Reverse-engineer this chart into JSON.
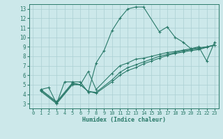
{
  "xlabel": "Humidex (Indice chaleur)",
  "ylabel": "",
  "bg_color": "#cce8ea",
  "grid_color": "#aacfd2",
  "line_color": "#2a7a6a",
  "xlim": [
    -0.5,
    23.5
  ],
  "ylim": [
    2.5,
    13.5
  ],
  "xticks": [
    0,
    1,
    2,
    3,
    4,
    5,
    6,
    7,
    8,
    9,
    10,
    11,
    12,
    13,
    14,
    15,
    16,
    17,
    18,
    19,
    20,
    21,
    22,
    23
  ],
  "yticks": [
    3,
    4,
    5,
    6,
    7,
    8,
    9,
    10,
    11,
    12,
    13
  ],
  "line1_x": [
    1,
    2,
    3,
    4,
    5,
    6,
    7,
    8,
    9,
    10,
    11,
    12,
    13,
    14,
    16,
    17,
    18,
    19,
    20,
    21,
    22,
    23
  ],
  "line1_y": [
    4.5,
    4.7,
    3.0,
    5.3,
    5.3,
    5.3,
    4.2,
    7.3,
    8.6,
    10.7,
    12.0,
    13.0,
    13.2,
    13.2,
    10.6,
    11.1,
    10.0,
    9.5,
    8.8,
    9.0,
    7.5,
    9.5
  ],
  "line2_x": [
    1,
    3,
    5,
    6,
    7,
    8,
    10,
    11,
    12,
    13,
    14,
    15,
    16,
    17,
    18,
    19,
    20,
    21,
    22,
    23
  ],
  "line2_y": [
    4.5,
    3.2,
    5.2,
    5.0,
    6.4,
    4.5,
    6.2,
    7.0,
    7.3,
    7.7,
    7.8,
    8.0,
    8.2,
    8.4,
    8.5,
    8.65,
    8.8,
    8.9,
    9.0,
    9.2
  ],
  "line3_x": [
    1,
    3,
    5,
    6,
    7,
    8,
    10,
    11,
    12,
    13,
    14,
    15,
    16,
    17,
    18,
    19,
    20,
    21,
    22,
    23
  ],
  "line3_y": [
    4.4,
    3.1,
    5.1,
    5.0,
    4.3,
    4.2,
    5.5,
    6.3,
    6.8,
    7.1,
    7.4,
    7.7,
    8.0,
    8.2,
    8.4,
    8.55,
    8.7,
    8.8,
    9.0,
    9.15
  ],
  "line4_x": [
    1,
    3,
    5,
    6,
    7,
    8,
    10,
    11,
    12,
    13,
    14,
    15,
    16,
    17,
    18,
    19,
    20,
    21,
    22,
    23
  ],
  "line4_y": [
    4.3,
    3.0,
    5.0,
    5.0,
    4.3,
    4.1,
    5.3,
    6.0,
    6.5,
    6.8,
    7.2,
    7.5,
    7.8,
    8.1,
    8.3,
    8.45,
    8.6,
    8.7,
    8.95,
    9.2
  ]
}
